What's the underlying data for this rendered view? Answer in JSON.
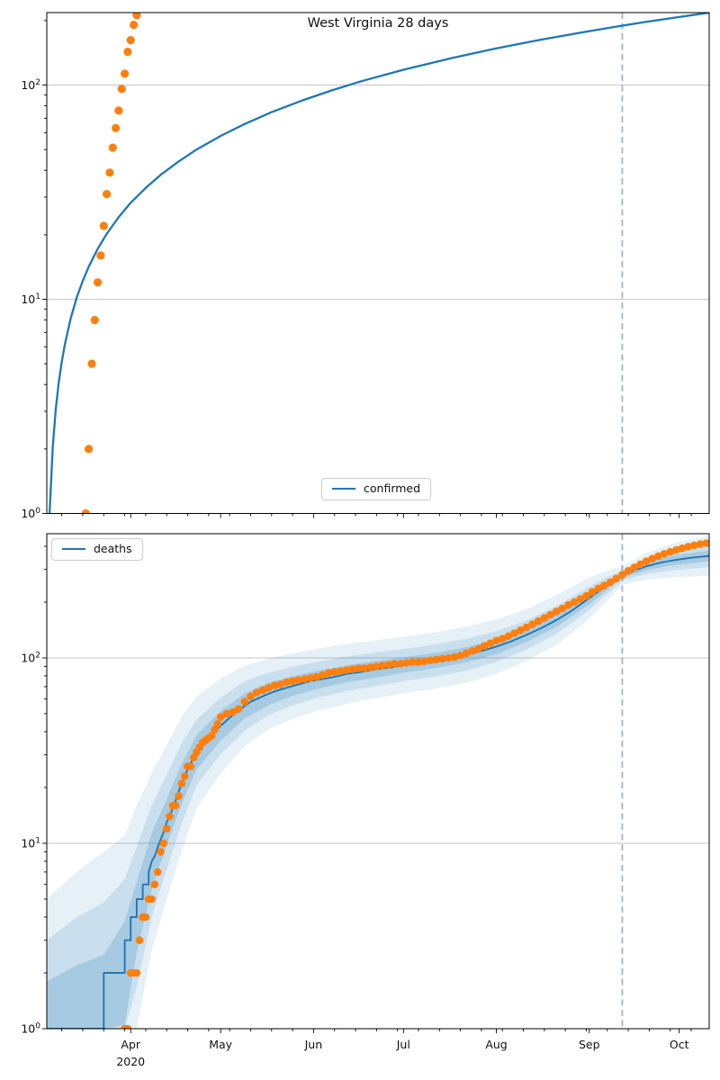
{
  "title": "West Virginia 28 days",
  "legends": {
    "confirmed": "confirmed",
    "deaths": "deaths"
  },
  "colors": {
    "model_line": "#1f77b4",
    "data_dots": "#ff7f0e",
    "forecast_vline": "rgba(31,119,180,0.5)",
    "grid": "#b3b3b3",
    "band_fill": "#1f77b4",
    "spine": "#000000",
    "text": "#111111"
  },
  "x_axis": {
    "total_days": 221,
    "months": [
      {
        "label": "Apr",
        "day": 28
      },
      {
        "label": "May",
        "day": 58
      },
      {
        "label": "Jun",
        "day": 89
      },
      {
        "label": "Jul",
        "day": 119
      },
      {
        "label": "Aug",
        "day": 150
      },
      {
        "label": "Sep",
        "day": 181
      },
      {
        "label": "Oct",
        "day": 211
      }
    ],
    "year_label": "2020",
    "year_under_day": 28,
    "minor_tick_days": [
      5,
      12,
      19,
      26,
      33,
      40,
      47,
      54,
      61,
      68,
      75,
      82,
      96,
      103,
      110,
      117,
      124,
      131,
      138,
      145,
      152,
      159,
      166,
      173,
      180,
      187,
      194,
      201,
      208,
      215
    ]
  },
  "y_axis": {
    "tick_exponents": [
      0,
      1,
      2
    ]
  },
  "chart_data": [
    {
      "name": "confirmed",
      "type": "line+scatter",
      "title": "West Virginia 28 days",
      "yscale": "log",
      "ylim": [
        1,
        218
      ],
      "vline_day": 192,
      "legend": "confirmed",
      "line_points": [
        [
          0.5,
          0.8
        ],
        [
          0.93,
          1
        ],
        [
          2,
          2.06
        ],
        [
          3,
          3.08
        ],
        [
          4,
          4.1
        ],
        [
          5,
          5.12
        ],
        [
          6,
          6.13
        ],
        [
          8,
          8.15
        ],
        [
          10,
          10.2
        ],
        [
          12,
          12.2
        ],
        [
          14,
          14.2
        ],
        [
          17,
          17.2
        ],
        [
          20,
          20.2
        ],
        [
          24,
          24.2
        ],
        [
          28,
          28.2
        ],
        [
          33,
          33.1
        ],
        [
          38,
          38.1
        ],
        [
          44,
          44
        ],
        [
          50,
          50
        ],
        [
          58,
          57.9
        ],
        [
          66,
          65.8
        ],
        [
          75,
          74.7
        ],
        [
          85,
          84.5
        ],
        [
          95,
          94.4
        ],
        [
          105,
          104.2
        ],
        [
          119,
          117.9
        ],
        [
          135,
          133.6
        ],
        [
          150,
          148.3
        ],
        [
          165,
          163
        ],
        [
          181,
          178.6
        ],
        [
          192,
          189.4
        ],
        [
          200,
          197.2
        ],
        [
          211,
          207.9
        ],
        [
          221,
          217.7
        ]
      ],
      "scatter_points": [
        [
          13,
          1
        ],
        [
          14,
          2
        ],
        [
          15,
          5
        ],
        [
          16,
          8
        ],
        [
          17,
          12
        ],
        [
          18,
          16
        ],
        [
          19,
          22
        ],
        [
          20,
          31
        ],
        [
          21,
          39
        ],
        [
          22,
          51
        ],
        [
          23,
          63
        ],
        [
          24,
          76
        ],
        [
          25,
          96
        ],
        [
          26,
          113
        ],
        [
          27,
          143
        ],
        [
          28,
          162
        ],
        [
          29,
          191
        ],
        [
          30,
          212
        ]
      ]
    },
    {
      "name": "deaths",
      "type": "line+scatter+bands",
      "yscale": "log",
      "ylim": [
        1,
        467
      ],
      "vline_day": 192,
      "legend": "deaths",
      "line_points": [
        [
          0,
          1
        ],
        [
          19,
          1
        ],
        [
          19,
          2
        ],
        [
          26,
          2
        ],
        [
          26,
          3
        ],
        [
          28,
          3
        ],
        [
          28,
          4
        ],
        [
          30,
          4
        ],
        [
          30,
          5
        ],
        [
          32,
          5
        ],
        [
          32,
          6
        ],
        [
          34,
          6
        ],
        [
          34,
          7
        ],
        [
          35,
          8
        ],
        [
          36,
          8.5
        ],
        [
          37,
          9.5
        ],
        [
          38,
          10.5
        ],
        [
          39,
          11.5
        ],
        [
          40,
          13
        ],
        [
          41,
          14
        ],
        [
          42,
          15.5
        ],
        [
          43,
          17
        ],
        [
          44,
          19
        ],
        [
          45,
          21
        ],
        [
          46,
          23
        ],
        [
          47,
          25
        ],
        [
          48,
          27
        ],
        [
          49,
          29
        ],
        [
          50,
          31
        ],
        [
          52,
          34
        ],
        [
          54,
          37
        ],
        [
          56,
          40
        ],
        [
          58,
          43
        ],
        [
          60,
          46
        ],
        [
          62,
          49
        ],
        [
          64,
          52
        ],
        [
          66,
          55
        ],
        [
          68,
          58
        ],
        [
          70,
          60
        ],
        [
          73,
          63
        ],
        [
          76,
          66
        ],
        [
          80,
          69
        ],
        [
          84,
          72
        ],
        [
          88,
          75
        ],
        [
          92,
          77
        ],
        [
          96,
          79
        ],
        [
          100,
          82
        ],
        [
          105,
          84
        ],
        [
          110,
          87
        ],
        [
          115,
          89
        ],
        [
          120,
          92
        ],
        [
          125,
          94
        ],
        [
          130,
          97
        ],
        [
          135,
          100
        ],
        [
          140,
          104
        ],
        [
          145,
          109
        ],
        [
          150,
          115
        ],
        [
          155,
          123
        ],
        [
          160,
          133
        ],
        [
          165,
          145
        ],
        [
          170,
          160
        ],
        [
          175,
          179
        ],
        [
          180,
          205
        ],
        [
          184,
          228
        ],
        [
          188,
          252
        ],
        [
          192,
          278
        ],
        [
          196,
          296
        ],
        [
          200,
          312
        ],
        [
          205,
          327
        ],
        [
          210,
          338
        ],
        [
          215,
          347
        ],
        [
          221,
          355
        ]
      ],
      "scatter_points": [
        [
          26,
          1
        ],
        [
          27,
          1
        ],
        [
          28,
          2
        ],
        [
          29,
          2
        ],
        [
          30,
          2
        ],
        [
          31,
          3
        ],
        [
          32,
          4
        ],
        [
          33,
          4
        ],
        [
          34,
          5
        ],
        [
          35,
          5
        ],
        [
          36,
          6
        ],
        [
          37,
          7
        ],
        [
          38,
          9
        ],
        [
          39,
          10
        ],
        [
          40,
          12
        ],
        [
          41,
          14
        ],
        [
          42,
          16
        ],
        [
          43,
          16
        ],
        [
          44,
          18
        ],
        [
          45,
          21
        ],
        [
          46,
          23
        ],
        [
          47,
          26
        ],
        [
          48,
          26
        ],
        [
          49,
          29
        ],
        [
          50,
          31
        ],
        [
          51,
          33
        ],
        [
          52,
          35
        ],
        [
          53,
          36
        ],
        [
          54,
          37
        ],
        [
          55,
          38
        ],
        [
          56,
          41
        ],
        [
          57,
          44
        ],
        [
          58,
          48
        ],
        [
          60,
          50
        ],
        [
          62,
          51
        ],
        [
          64,
          53
        ],
        [
          66,
          58
        ],
        [
          68,
          62
        ],
        [
          70,
          65
        ],
        [
          72,
          67
        ],
        [
          74,
          69
        ],
        [
          76,
          71
        ],
        [
          78,
          72
        ],
        [
          80,
          74
        ],
        [
          82,
          75
        ],
        [
          84,
          76
        ],
        [
          86,
          77
        ],
        [
          88,
          78
        ],
        [
          90,
          79
        ],
        [
          92,
          81
        ],
        [
          94,
          83
        ],
        [
          96,
          84
        ],
        [
          98,
          85
        ],
        [
          100,
          86
        ],
        [
          102,
          87
        ],
        [
          104,
          88
        ],
        [
          106,
          88
        ],
        [
          108,
          89
        ],
        [
          110,
          90
        ],
        [
          112,
          91
        ],
        [
          114,
          92
        ],
        [
          116,
          93
        ],
        [
          118,
          93
        ],
        [
          120,
          94
        ],
        [
          122,
          95
        ],
        [
          124,
          95
        ],
        [
          126,
          96
        ],
        [
          128,
          97
        ],
        [
          130,
          98
        ],
        [
          132,
          99
        ],
        [
          134,
          100
        ],
        [
          136,
          101
        ],
        [
          138,
          103
        ],
        [
          140,
          106
        ],
        [
          142,
          109
        ],
        [
          144,
          112
        ],
        [
          146,
          116
        ],
        [
          148,
          120
        ],
        [
          150,
          124
        ],
        [
          152,
          127
        ],
        [
          154,
          131
        ],
        [
          156,
          136
        ],
        [
          158,
          141
        ],
        [
          160,
          146
        ],
        [
          162,
          152
        ],
        [
          164,
          158
        ],
        [
          166,
          164
        ],
        [
          168,
          171
        ],
        [
          170,
          178
        ],
        [
          172,
          185
        ],
        [
          174,
          193
        ],
        [
          176,
          200
        ],
        [
          178,
          208
        ],
        [
          180,
          216
        ],
        [
          182,
          227
        ],
        [
          184,
          237
        ],
        [
          186,
          246
        ],
        [
          188,
          256
        ],
        [
          190,
          268
        ],
        [
          192,
          281
        ],
        [
          194,
          295
        ],
        [
          196,
          308
        ],
        [
          198,
          320
        ],
        [
          200,
          332
        ],
        [
          202,
          343
        ],
        [
          204,
          354
        ],
        [
          206,
          364
        ],
        [
          208,
          373
        ],
        [
          210,
          382
        ],
        [
          212,
          390
        ],
        [
          214,
          398
        ],
        [
          216,
          405
        ],
        [
          218,
          411
        ],
        [
          220,
          416
        ]
      ],
      "bands": {
        "days": [
          0,
          10,
          19,
          26,
          30,
          35,
          40,
          45,
          50,
          58,
          66,
          74,
          82,
          90,
          100,
          110,
          120,
          130,
          140,
          150,
          160,
          170,
          180,
          186,
          192,
          200,
          210,
          221
        ],
        "outer": [
          5,
          7,
          9,
          5.5,
          4,
          3,
          2.6,
          2.3,
          2.0,
          1.8,
          1.65,
          1.55,
          1.5,
          1.47,
          1.45,
          1.43,
          1.42,
          1.42,
          1.42,
          1.4,
          1.38,
          1.36,
          1.3,
          1.22,
          1.12,
          1.18,
          1.24,
          1.28
        ],
        "mid": [
          3,
          4,
          4.8,
          3.2,
          2.4,
          2,
          1.8,
          1.65,
          1.5,
          1.42,
          1.36,
          1.3,
          1.27,
          1.25,
          1.24,
          1.23,
          1.22,
          1.22,
          1.22,
          1.21,
          1.2,
          1.19,
          1.16,
          1.12,
          1.065,
          1.1,
          1.13,
          1.15
        ],
        "inner": [
          1.8,
          2.2,
          2.5,
          1.9,
          1.55,
          1.42,
          1.33,
          1.28,
          1.24,
          1.2,
          1.17,
          1.15,
          1.13,
          1.12,
          1.11,
          1.11,
          1.1,
          1.1,
          1.1,
          1.1,
          1.09,
          1.09,
          1.08,
          1.06,
          1.03,
          1.05,
          1.06,
          1.07
        ]
      }
    }
  ]
}
